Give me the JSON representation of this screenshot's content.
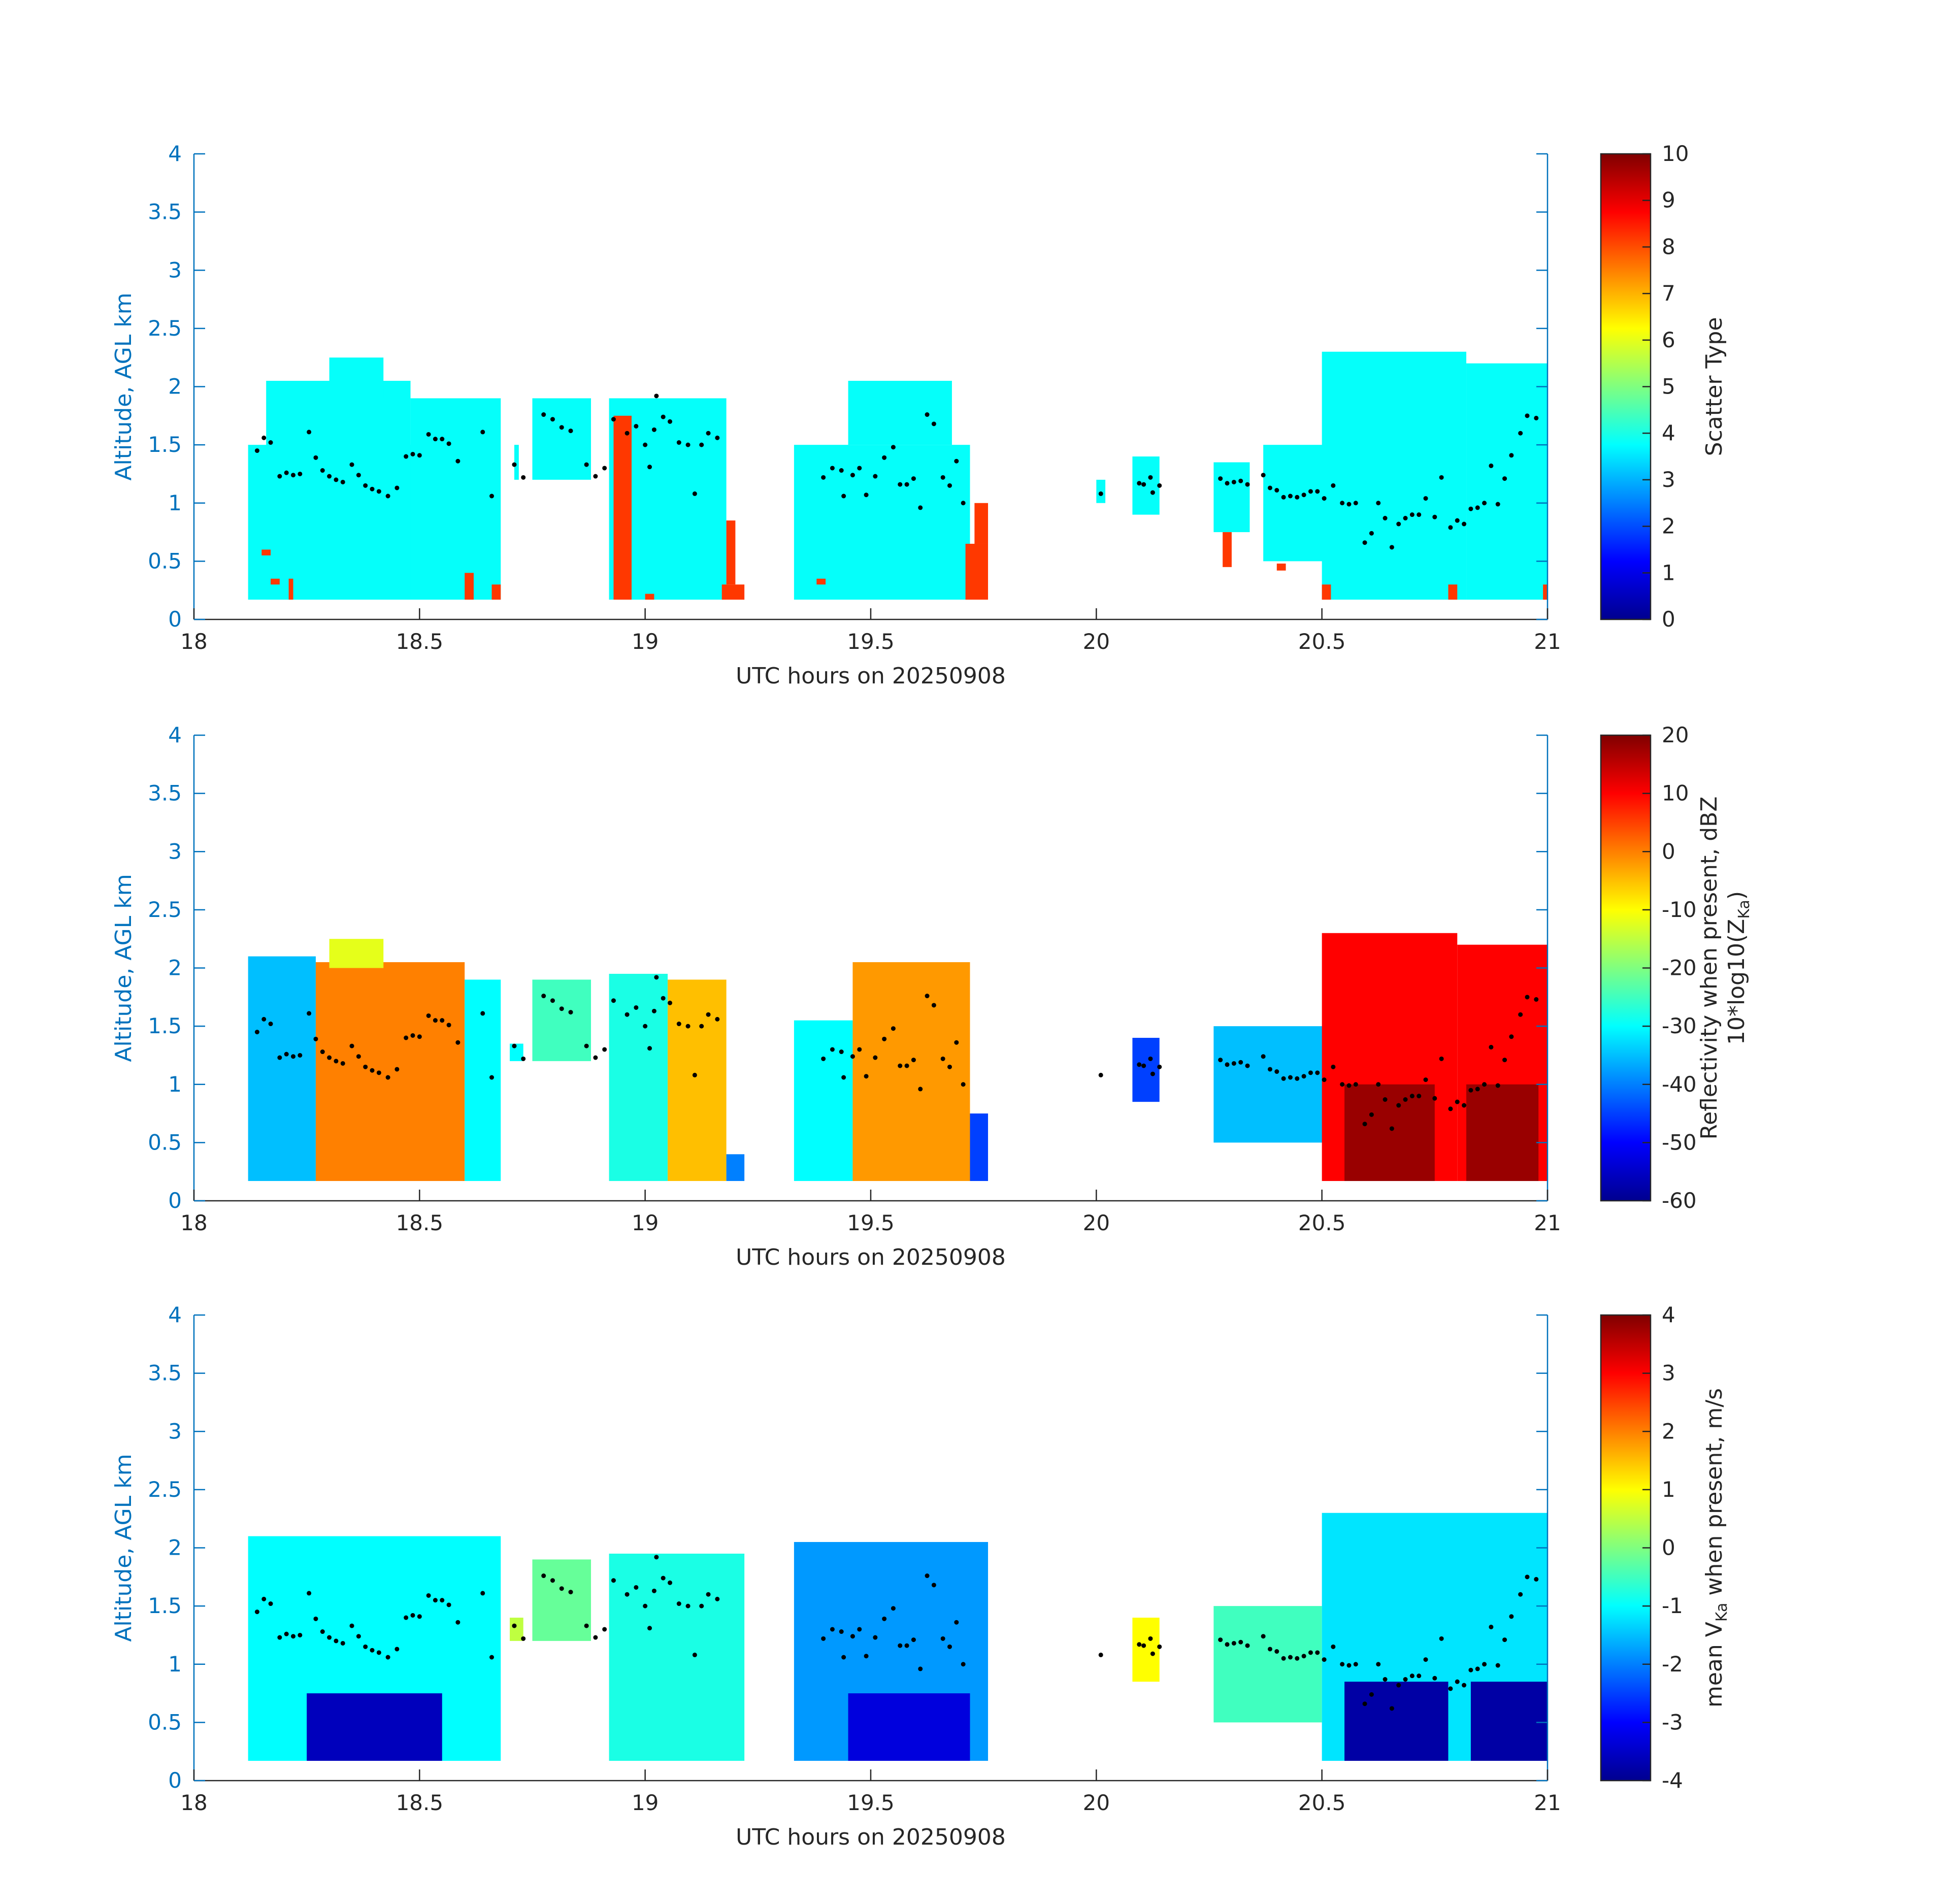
{
  "chart_data": [
    {
      "type": "heatmap",
      "panel": "scatter-type",
      "xlabel": "UTC hours on 20250908",
      "ylabel": "Altitude, AGL km",
      "xlim": [
        18,
        21
      ],
      "ylim": [
        0,
        4
      ],
      "xticks": [
        "18",
        "18.5",
        "19",
        "19.5",
        "20",
        "20.5",
        "21"
      ],
      "yticks": [
        "0",
        "0.5",
        "1",
        "1.5",
        "2",
        "2.5",
        "3",
        "3.5",
        "4"
      ],
      "colorbar": {
        "label": "Scatter Type",
        "range": [
          0,
          10
        ],
        "ticks": [
          "0",
          "1",
          "2",
          "3",
          "4",
          "5",
          "6",
          "7",
          "8",
          "9",
          "10"
        ]
      },
      "cloud_blocks": [
        {
          "x": [
            18.12,
            18.59
          ],
          "y": [
            0.17,
            1.5
          ],
          "value": 3.8
        },
        {
          "x": [
            18.16,
            18.48
          ],
          "y": [
            0.17,
            2.05
          ],
          "value": 3.8
        },
        {
          "x": [
            18.3,
            18.42
          ],
          "y": [
            1.9,
            2.25
          ],
          "value": 3.8
        },
        {
          "x": [
            18.48,
            18.68
          ],
          "y": [
            0.17,
            1.9
          ],
          "value": 3.8
        },
        {
          "x": [
            18.71,
            18.72
          ],
          "y": [
            1.2,
            1.5
          ],
          "value": 3.8
        },
        {
          "x": [
            18.75,
            18.88
          ],
          "y": [
            1.2,
            1.9
          ],
          "value": 3.8
        },
        {
          "x": [
            18.92,
            19.18
          ],
          "y": [
            0.17,
            1.9
          ],
          "value": 3.8
        },
        {
          "x": [
            19.33,
            19.72
          ],
          "y": [
            0.17,
            1.5
          ],
          "value": 3.8
        },
        {
          "x": [
            19.45,
            19.68
          ],
          "y": [
            1.5,
            2.05
          ],
          "value": 3.8
        },
        {
          "x": [
            20.0,
            20.02
          ],
          "y": [
            1.0,
            1.2
          ],
          "value": 3.8
        },
        {
          "x": [
            20.08,
            20.14
          ],
          "y": [
            0.9,
            1.4
          ],
          "value": 3.8
        },
        {
          "x": [
            20.26,
            20.34
          ],
          "y": [
            0.75,
            1.35
          ],
          "value": 3.8
        },
        {
          "x": [
            20.37,
            20.52
          ],
          "y": [
            0.5,
            1.5
          ],
          "value": 3.8
        },
        {
          "x": [
            20.5,
            20.82
          ],
          "y": [
            0.17,
            2.3
          ],
          "value": 3.8
        },
        {
          "x": [
            20.82,
            21.0
          ],
          "y": [
            0.17,
            2.2
          ],
          "value": 3.8
        },
        {
          "x": [
            18.15,
            18.17
          ],
          "y": [
            0.55,
            0.6
          ],
          "value": 8.2
        },
        {
          "x": [
            18.17,
            18.19
          ],
          "y": [
            0.3,
            0.35
          ],
          "value": 8.2
        },
        {
          "x": [
            18.21,
            18.22
          ],
          "y": [
            0.17,
            0.35
          ],
          "value": 8.2
        },
        {
          "x": [
            18.6,
            18.62
          ],
          "y": [
            0.17,
            0.4
          ],
          "value": 8.2
        },
        {
          "x": [
            18.66,
            18.68
          ],
          "y": [
            0.17,
            0.3
          ],
          "value": 8.2
        },
        {
          "x": [
            18.93,
            18.97
          ],
          "y": [
            0.17,
            1.75
          ],
          "value": 8.2
        },
        {
          "x": [
            19.0,
            19.02
          ],
          "y": [
            0.17,
            0.22
          ],
          "value": 8.2
        },
        {
          "x": [
            19.17,
            19.22
          ],
          "y": [
            0.17,
            0.3
          ],
          "value": 8.2
        },
        {
          "x": [
            19.18,
            19.2
          ],
          "y": [
            0.3,
            0.85
          ],
          "value": 8.2
        },
        {
          "x": [
            19.38,
            19.4
          ],
          "y": [
            0.3,
            0.35
          ],
          "value": 8.2
        },
        {
          "x": [
            19.71,
            19.76
          ],
          "y": [
            0.17,
            0.65
          ],
          "value": 8.2
        },
        {
          "x": [
            19.73,
            19.76
          ],
          "y": [
            0.65,
            1.0
          ],
          "value": 8.2
        },
        {
          "x": [
            20.28,
            20.3
          ],
          "y": [
            0.45,
            0.75
          ],
          "value": 8.2
        },
        {
          "x": [
            20.4,
            20.42
          ],
          "y": [
            0.42,
            0.48
          ],
          "value": 8.2
        },
        {
          "x": [
            20.5,
            20.52
          ],
          "y": [
            0.17,
            0.3
          ],
          "value": 8.2
        },
        {
          "x": [
            20.78,
            20.8
          ],
          "y": [
            0.17,
            0.3
          ],
          "value": 8.2
        },
        {
          "x": [
            20.99,
            21.0
          ],
          "y": [
            0.17,
            0.3
          ],
          "value": 8.2
        }
      ]
    },
    {
      "type": "heatmap",
      "panel": "reflectivity",
      "xlabel": "UTC hours on 20250908",
      "ylabel": "Altitude, AGL km",
      "xlim": [
        18,
        21
      ],
      "ylim": [
        0,
        4
      ],
      "xticks": [
        "18",
        "18.5",
        "19",
        "19.5",
        "20",
        "20.5",
        "21"
      ],
      "yticks": [
        "0",
        "0.5",
        "1",
        "1.5",
        "2",
        "2.5",
        "3",
        "3.5",
        "4"
      ],
      "colorbar": {
        "label": "Reflectivity when present, dBZ",
        "label2": "10*log10(Z",
        "label2_sub": "Ka",
        "label2_end": ")",
        "range": [
          -60,
          20
        ],
        "ticks": [
          "-60",
          "-50",
          "-40",
          "-30",
          "-20",
          "-10",
          "0",
          "10",
          "20"
        ]
      },
      "cloud_blocks": [
        {
          "x": [
            18.12,
            18.27
          ],
          "y": [
            0.17,
            2.1
          ],
          "value": -35
        },
        {
          "x": [
            18.27,
            18.6
          ],
          "y": [
            0.17,
            2.05
          ],
          "value": 0
        },
        {
          "x": [
            18.3,
            18.42
          ],
          "y": [
            2.0,
            2.25
          ],
          "value": -12
        },
        {
          "x": [
            18.6,
            18.68
          ],
          "y": [
            0.17,
            1.9
          ],
          "value": -30
        },
        {
          "x": [
            18.7,
            18.73
          ],
          "y": [
            1.2,
            1.35
          ],
          "value": -30
        },
        {
          "x": [
            18.75,
            18.88
          ],
          "y": [
            1.2,
            1.9
          ],
          "value": -25
        },
        {
          "x": [
            18.92,
            19.05
          ],
          "y": [
            0.17,
            1.95
          ],
          "value": -28
        },
        {
          "x": [
            19.05,
            19.18
          ],
          "y": [
            0.17,
            1.9
          ],
          "value": -5
        },
        {
          "x": [
            19.18,
            19.22
          ],
          "y": [
            0.17,
            0.4
          ],
          "value": -40
        },
        {
          "x": [
            19.33,
            19.46
          ],
          "y": [
            0.17,
            1.55
          ],
          "value": -30
        },
        {
          "x": [
            19.46,
            19.72
          ],
          "y": [
            0.17,
            2.05
          ],
          "value": -2
        },
        {
          "x": [
            19.72,
            19.76
          ],
          "y": [
            0.17,
            0.75
          ],
          "value": -45
        },
        {
          "x": [
            20.08,
            20.14
          ],
          "y": [
            0.85,
            1.4
          ],
          "value": -45
        },
        {
          "x": [
            20.26,
            20.52
          ],
          "y": [
            0.5,
            1.5
          ],
          "value": -35
        },
        {
          "x": [
            20.5,
            20.8
          ],
          "y": [
            0.17,
            2.3
          ],
          "value": 10
        },
        {
          "x": [
            20.8,
            21.0
          ],
          "y": [
            0.17,
            2.2
          ],
          "value": 10
        },
        {
          "x": [
            20.55,
            20.75
          ],
          "y": [
            0.17,
            1.0
          ],
          "value": 18
        },
        {
          "x": [
            20.82,
            20.98
          ],
          "y": [
            0.17,
            1.0
          ],
          "value": 18
        }
      ]
    },
    {
      "type": "heatmap",
      "panel": "mean-velocity",
      "xlabel": "UTC hours on 20250908",
      "ylabel": "Altitude, AGL km",
      "xlim": [
        18,
        21
      ],
      "ylim": [
        0,
        4
      ],
      "xticks": [
        "18",
        "18.5",
        "19",
        "19.5",
        "20",
        "20.5",
        "21"
      ],
      "yticks": [
        "0",
        "0.5",
        "1",
        "1.5",
        "2",
        "2.5",
        "3",
        "3.5",
        "4"
      ],
      "colorbar": {
        "label_prefix": "mean V",
        "label_sub": "Ka",
        "label_suffix": " when present, m/s",
        "range": [
          -4,
          4
        ],
        "ticks": [
          "-4",
          "-3",
          "-2",
          "-1",
          "0",
          "1",
          "2",
          "3",
          "4"
        ]
      },
      "cloud_blocks": [
        {
          "x": [
            18.12,
            18.68
          ],
          "y": [
            0.17,
            2.1
          ],
          "value": -1.0
        },
        {
          "x": [
            18.25,
            18.55
          ],
          "y": [
            0.17,
            0.75
          ],
          "value": -3.6
        },
        {
          "x": [
            18.7,
            18.73
          ],
          "y": [
            1.2,
            1.4
          ],
          "value": 0.5
        },
        {
          "x": [
            18.75,
            18.88
          ],
          "y": [
            1.2,
            1.9
          ],
          "value": -0.2
        },
        {
          "x": [
            18.92,
            19.22
          ],
          "y": [
            0.17,
            1.95
          ],
          "value": -0.8
        },
        {
          "x": [
            19.33,
            19.76
          ],
          "y": [
            0.17,
            2.05
          ],
          "value": -1.8
        },
        {
          "x": [
            19.45,
            19.72
          ],
          "y": [
            0.17,
            0.75
          ],
          "value": -3.3
        },
        {
          "x": [
            20.08,
            20.14
          ],
          "y": [
            0.85,
            1.4
          ],
          "value": 1.0
        },
        {
          "x": [
            20.26,
            20.5
          ],
          "y": [
            0.5,
            1.5
          ],
          "value": -0.5
        },
        {
          "x": [
            20.5,
            21.0
          ],
          "y": [
            0.17,
            2.3
          ],
          "value": -1.2
        },
        {
          "x": [
            20.55,
            20.78
          ],
          "y": [
            0.17,
            0.85
          ],
          "value": -3.8
        },
        {
          "x": [
            20.83,
            21.0
          ],
          "y": [
            0.17,
            0.85
          ],
          "value": -3.8
        }
      ]
    }
  ],
  "cloud_base_points": [
    {
      "x": 18.14,
      "y": 1.45
    },
    {
      "x": 18.155,
      "y": 1.56
    },
    {
      "x": 18.17,
      "y": 1.52
    },
    {
      "x": 18.19,
      "y": 1.23
    },
    {
      "x": 18.205,
      "y": 1.26
    },
    {
      "x": 18.22,
      "y": 1.24
    },
    {
      "x": 18.235,
      "y": 1.25
    },
    {
      "x": 18.255,
      "y": 1.61
    },
    {
      "x": 18.27,
      "y": 1.39
    },
    {
      "x": 18.285,
      "y": 1.28
    },
    {
      "x": 18.3,
      "y": 1.23
    },
    {
      "x": 18.315,
      "y": 1.2
    },
    {
      "x": 18.33,
      "y": 1.18
    },
    {
      "x": 18.35,
      "y": 1.33
    },
    {
      "x": 18.365,
      "y": 1.24
    },
    {
      "x": 18.38,
      "y": 1.15
    },
    {
      "x": 18.395,
      "y": 1.12
    },
    {
      "x": 18.41,
      "y": 1.1
    },
    {
      "x": 18.43,
      "y": 1.06
    },
    {
      "x": 18.45,
      "y": 1.13
    },
    {
      "x": 18.47,
      "y": 1.4
    },
    {
      "x": 18.485,
      "y": 1.42
    },
    {
      "x": 18.5,
      "y": 1.41
    },
    {
      "x": 18.52,
      "y": 1.59
    },
    {
      "x": 18.535,
      "y": 1.55
    },
    {
      "x": 18.55,
      "y": 1.55
    },
    {
      "x": 18.565,
      "y": 1.51
    },
    {
      "x": 18.585,
      "y": 1.36
    },
    {
      "x": 18.64,
      "y": 1.61
    },
    {
      "x": 18.66,
      "y": 1.06
    },
    {
      "x": 18.71,
      "y": 1.33
    },
    {
      "x": 18.73,
      "y": 1.22
    },
    {
      "x": 18.775,
      "y": 1.76
    },
    {
      "x": 18.795,
      "y": 1.72
    },
    {
      "x": 18.815,
      "y": 1.65
    },
    {
      "x": 18.835,
      "y": 1.62
    },
    {
      "x": 18.87,
      "y": 1.33
    },
    {
      "x": 18.89,
      "y": 1.23
    },
    {
      "x": 18.91,
      "y": 1.3
    },
    {
      "x": 18.93,
      "y": 1.72
    },
    {
      "x": 18.96,
      "y": 1.6
    },
    {
      "x": 18.98,
      "y": 1.66
    },
    {
      "x": 19.0,
      "y": 1.5
    },
    {
      "x": 19.01,
      "y": 1.31
    },
    {
      "x": 19.02,
      "y": 1.63
    },
    {
      "x": 19.025,
      "y": 1.92
    },
    {
      "x": 19.04,
      "y": 1.74
    },
    {
      "x": 19.055,
      "y": 1.7
    },
    {
      "x": 19.075,
      "y": 1.52
    },
    {
      "x": 19.095,
      "y": 1.5
    },
    {
      "x": 19.11,
      "y": 1.08
    },
    {
      "x": 19.125,
      "y": 1.5
    },
    {
      "x": 19.14,
      "y": 1.6
    },
    {
      "x": 19.16,
      "y": 1.56
    },
    {
      "x": 19.395,
      "y": 1.22
    },
    {
      "x": 19.415,
      "y": 1.3
    },
    {
      "x": 19.435,
      "y": 1.28
    },
    {
      "x": 19.44,
      "y": 1.06
    },
    {
      "x": 19.46,
      "y": 1.24
    },
    {
      "x": 19.475,
      "y": 1.3
    },
    {
      "x": 19.49,
      "y": 1.07
    },
    {
      "x": 19.51,
      "y": 1.23
    },
    {
      "x": 19.53,
      "y": 1.39
    },
    {
      "x": 19.55,
      "y": 1.48
    },
    {
      "x": 19.565,
      "y": 1.16
    },
    {
      "x": 19.58,
      "y": 1.16
    },
    {
      "x": 19.595,
      "y": 1.21
    },
    {
      "x": 19.61,
      "y": 0.96
    },
    {
      "x": 19.625,
      "y": 1.76
    },
    {
      "x": 19.64,
      "y": 1.68
    },
    {
      "x": 19.66,
      "y": 1.22
    },
    {
      "x": 19.675,
      "y": 1.15
    },
    {
      "x": 19.69,
      "y": 1.36
    },
    {
      "x": 19.705,
      "y": 1.0
    },
    {
      "x": 20.01,
      "y": 1.08
    },
    {
      "x": 20.095,
      "y": 1.17
    },
    {
      "x": 20.105,
      "y": 1.16
    },
    {
      "x": 20.12,
      "y": 1.22
    },
    {
      "x": 20.125,
      "y": 1.09
    },
    {
      "x": 20.14,
      "y": 1.15
    },
    {
      "x": 20.275,
      "y": 1.21
    },
    {
      "x": 20.29,
      "y": 1.17
    },
    {
      "x": 20.305,
      "y": 1.18
    },
    {
      "x": 20.32,
      "y": 1.19
    },
    {
      "x": 20.335,
      "y": 1.16
    },
    {
      "x": 20.37,
      "y": 1.24
    },
    {
      "x": 20.385,
      "y": 1.13
    },
    {
      "x": 20.4,
      "y": 1.11
    },
    {
      "x": 20.415,
      "y": 1.05
    },
    {
      "x": 20.43,
      "y": 1.06
    },
    {
      "x": 20.445,
      "y": 1.05
    },
    {
      "x": 20.46,
      "y": 1.07
    },
    {
      "x": 20.475,
      "y": 1.1
    },
    {
      "x": 20.49,
      "y": 1.1
    },
    {
      "x": 20.505,
      "y": 1.04
    },
    {
      "x": 20.525,
      "y": 1.15
    },
    {
      "x": 20.545,
      "y": 1.0
    },
    {
      "x": 20.56,
      "y": 0.99
    },
    {
      "x": 20.575,
      "y": 1.0
    },
    {
      "x": 20.595,
      "y": 0.66
    },
    {
      "x": 20.61,
      "y": 0.74
    },
    {
      "x": 20.625,
      "y": 1.0
    },
    {
      "x": 20.64,
      "y": 0.87
    },
    {
      "x": 20.655,
      "y": 0.62
    },
    {
      "x": 20.67,
      "y": 0.82
    },
    {
      "x": 20.685,
      "y": 0.87
    },
    {
      "x": 20.7,
      "y": 0.9
    },
    {
      "x": 20.715,
      "y": 0.9
    },
    {
      "x": 20.73,
      "y": 1.04
    },
    {
      "x": 20.75,
      "y": 0.88
    },
    {
      "x": 20.765,
      "y": 1.22
    },
    {
      "x": 20.785,
      "y": 0.79
    },
    {
      "x": 20.8,
      "y": 0.85
    },
    {
      "x": 20.815,
      "y": 0.82
    },
    {
      "x": 20.83,
      "y": 0.95
    },
    {
      "x": 20.845,
      "y": 0.96
    },
    {
      "x": 20.86,
      "y": 1.0
    },
    {
      "x": 20.875,
      "y": 1.32
    },
    {
      "x": 20.89,
      "y": 0.99
    },
    {
      "x": 20.905,
      "y": 1.21
    },
    {
      "x": 20.92,
      "y": 1.41
    },
    {
      "x": 20.94,
      "y": 1.6
    },
    {
      "x": 20.955,
      "y": 1.75
    },
    {
      "x": 20.975,
      "y": 1.73
    }
  ],
  "colors": {
    "axis": "#0072BD",
    "text": "#262626",
    "point": "#000000"
  }
}
